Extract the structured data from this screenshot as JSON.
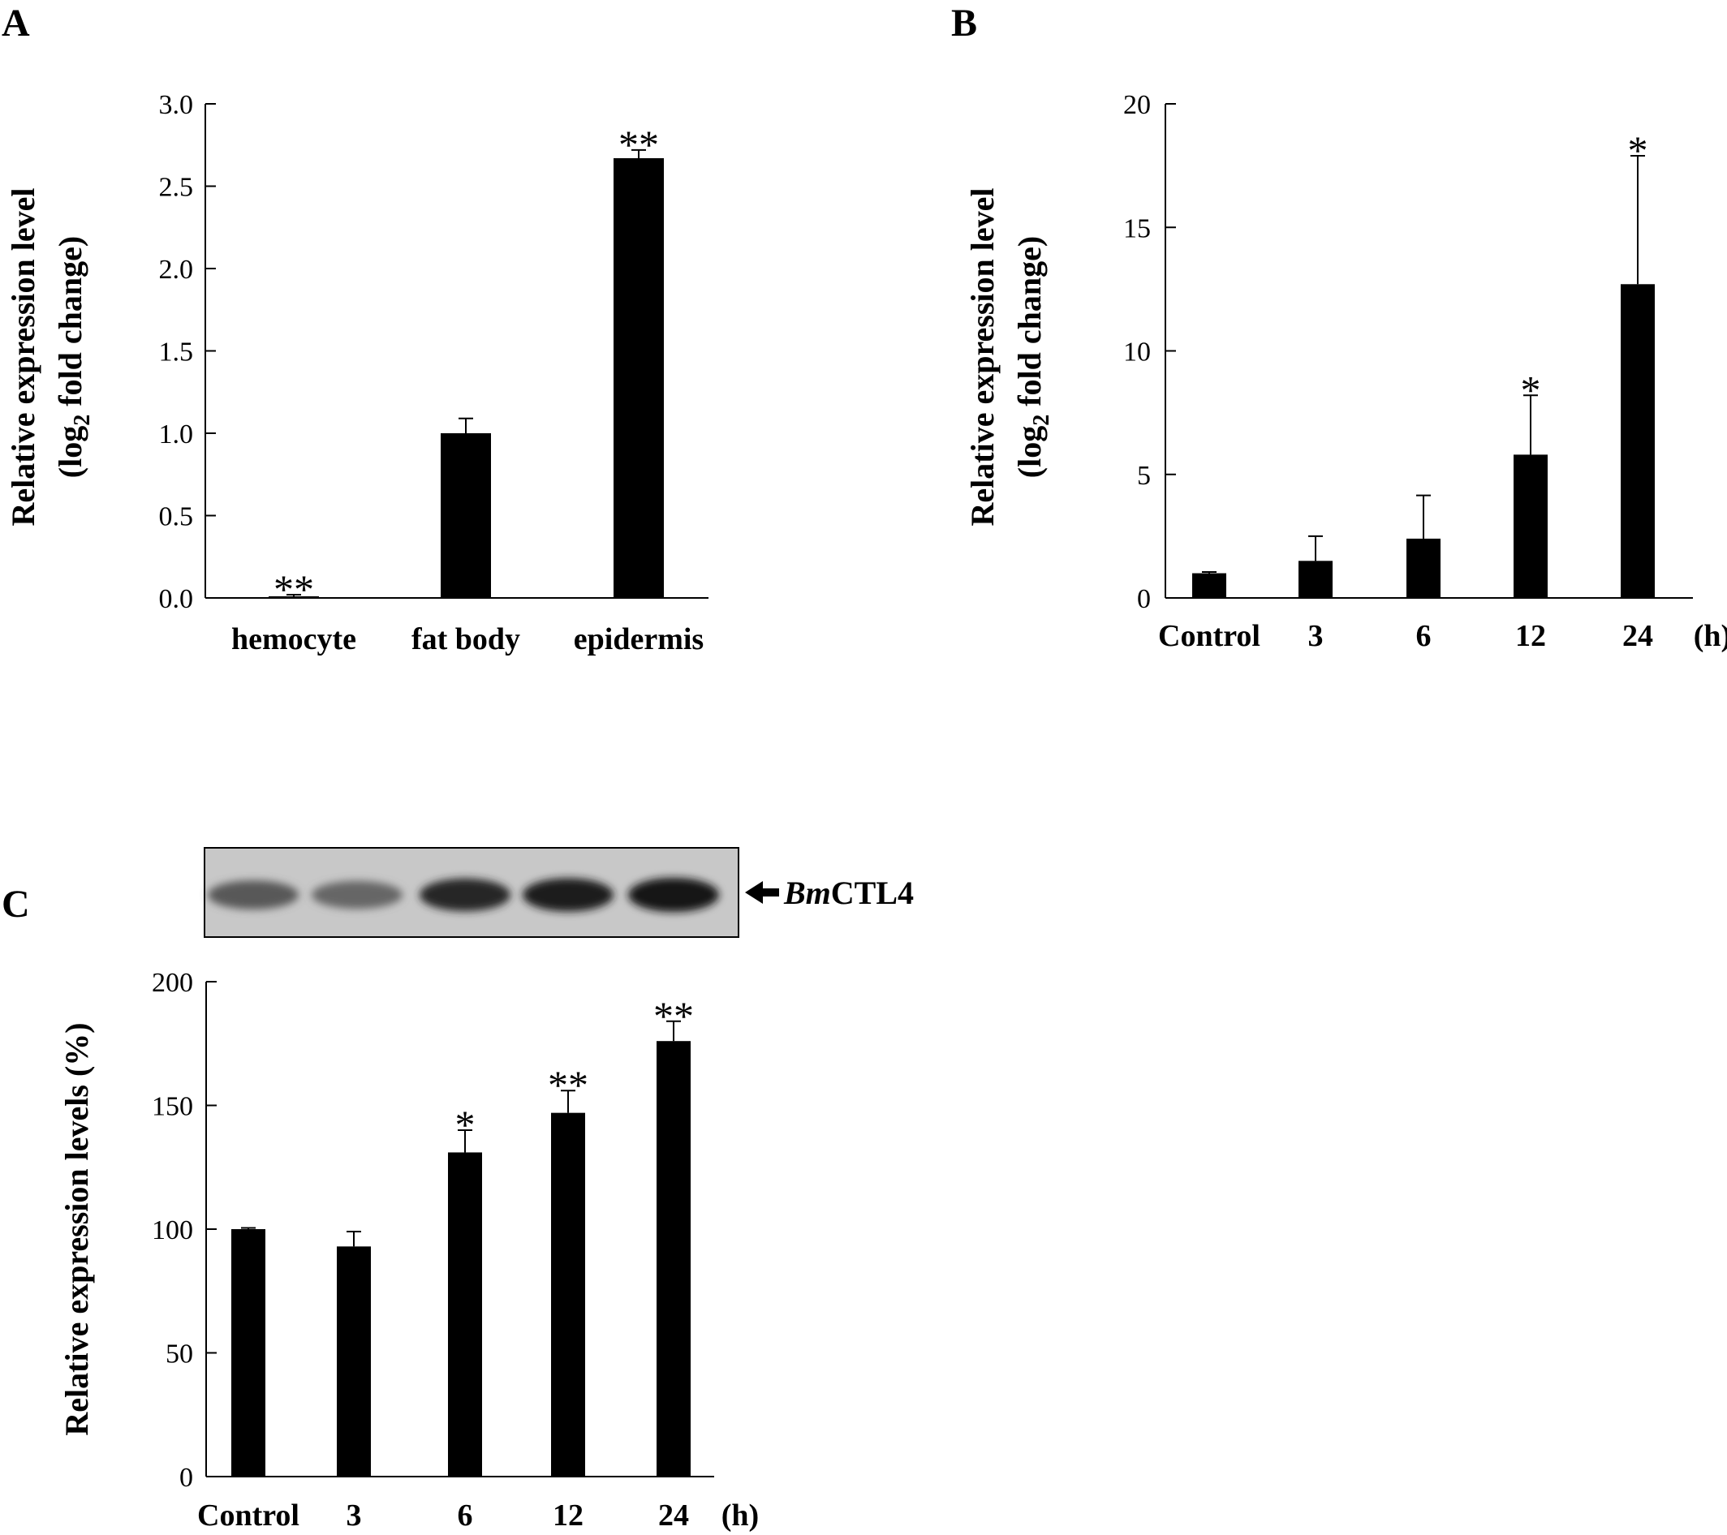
{
  "panels": {
    "A": {
      "letter": "A"
    },
    "B": {
      "letter": "B"
    },
    "C": {
      "letter": "C"
    }
  },
  "chart_data": [
    {
      "panel": "A",
      "type": "bar",
      "categories": [
        "hemocyte",
        "fat body",
        "epidermis"
      ],
      "values": [
        0.01,
        1.0,
        2.67
      ],
      "errors": [
        0.01,
        0.09,
        0.05
      ],
      "significance": [
        "**",
        "",
        "**"
      ],
      "ylabel_line1": "Relative expression level",
      "ylabel_line2_pre": "(log",
      "ylabel_line2_sub": "2",
      "ylabel_line2_post": " fold change)",
      "ylim": [
        0,
        3.0
      ],
      "yticks": [
        "0.0",
        "0.5",
        "1.0",
        "1.5",
        "2.0",
        "2.5",
        "3.0"
      ],
      "xunit": "",
      "grid": false
    },
    {
      "panel": "B",
      "type": "bar",
      "categories": [
        "Control",
        "3",
        "6",
        "12",
        "24"
      ],
      "values": [
        1.0,
        1.5,
        2.4,
        5.8,
        12.7
      ],
      "errors": [
        0.05,
        1.0,
        1.75,
        2.4,
        5.2
      ],
      "significance": [
        "",
        "",
        "",
        "*",
        "*"
      ],
      "ylabel_line1": "Relative expression level",
      "ylabel_line2_pre": "(log",
      "ylabel_line2_sub": "2",
      "ylabel_line2_post": " fold change)",
      "ylim": [
        0,
        20
      ],
      "yticks": [
        "0",
        "5",
        "10",
        "15",
        "20"
      ],
      "xunit": "(h)",
      "grid": false
    },
    {
      "panel": "C",
      "type": "bar",
      "categories": [
        "Control",
        "3",
        "6",
        "12",
        "24"
      ],
      "values": [
        100,
        93,
        131,
        147,
        176
      ],
      "errors": [
        0.5,
        6,
        9,
        9,
        8
      ],
      "significance": [
        "",
        "",
        "*",
        "**",
        "**"
      ],
      "ylabel_line1": "Relative expression levels (%)",
      "ylim": [
        0,
        200
      ],
      "yticks": [
        "0",
        "50",
        "100",
        "150",
        "200"
      ],
      "xunit": "(h)",
      "grid": false,
      "blot": {
        "label_italic": "Bm",
        "label_rest": "CTL4",
        "band_intensity": [
          0.65,
          0.6,
          0.85,
          0.88,
          0.92
        ]
      }
    }
  ]
}
